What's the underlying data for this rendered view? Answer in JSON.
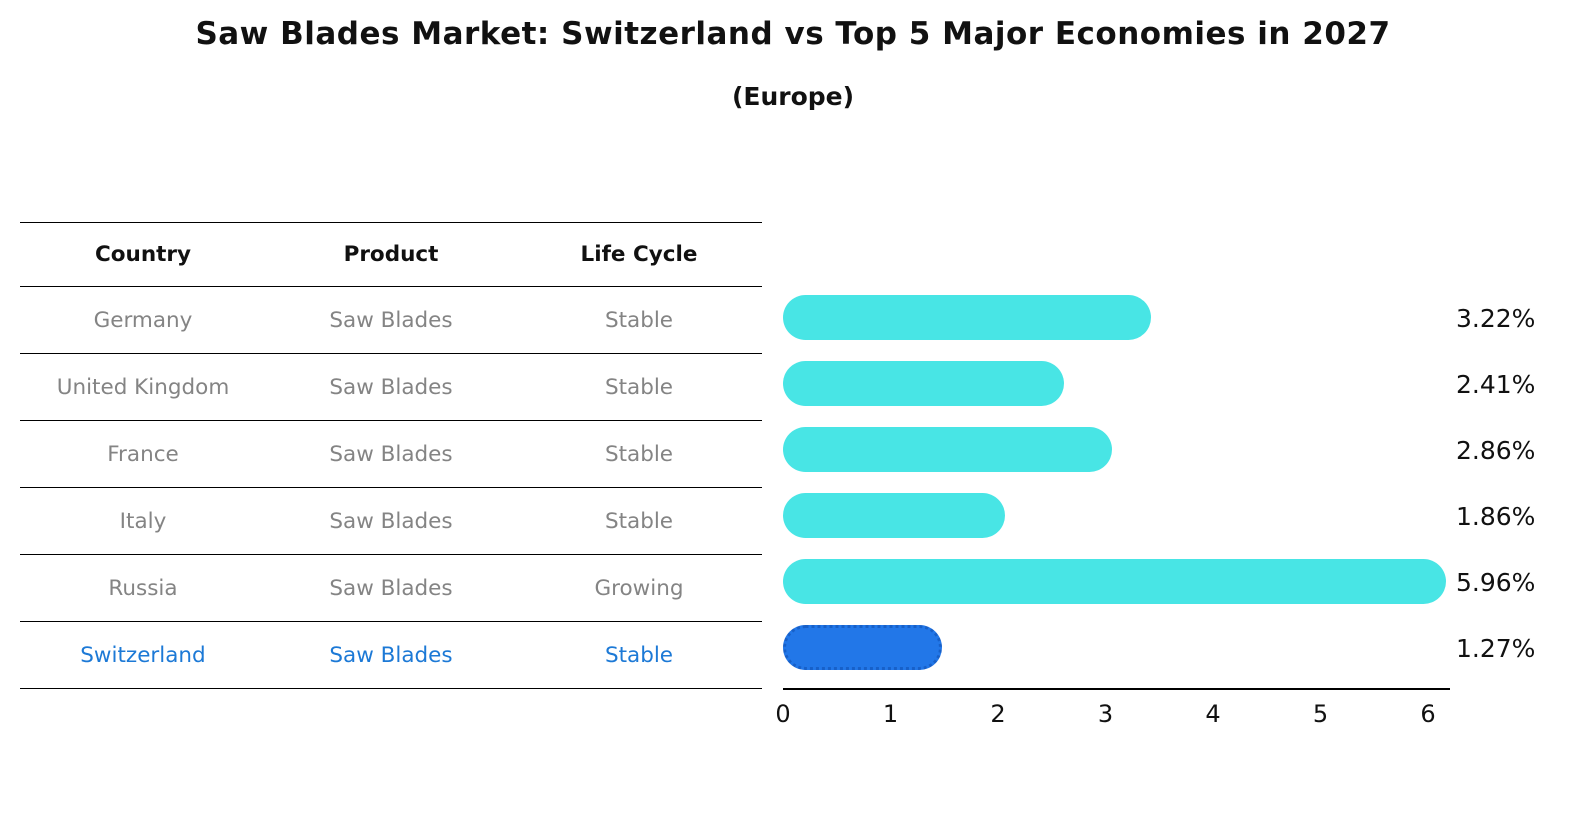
{
  "title": "Saw Blades Market: Switzerland vs Top 5 Major Economies in 2027",
  "subtitle": "(Europe)",
  "table": {
    "headers": [
      "Country",
      "Product",
      "Life Cycle"
    ],
    "row_text_color": "#848484",
    "highlight_text_color": "#1c79d6",
    "rows": [
      {
        "country": "Germany",
        "product": "Saw Blades",
        "life_cycle": "Stable",
        "highlight": false
      },
      {
        "country": "United Kingdom",
        "product": "Saw Blades",
        "life_cycle": "Stable",
        "highlight": false
      },
      {
        "country": "France",
        "product": "Saw Blades",
        "life_cycle": "Stable",
        "highlight": false
      },
      {
        "country": "Italy",
        "product": "Saw Blades",
        "life_cycle": "Stable",
        "highlight": false
      },
      {
        "country": "Russia",
        "product": "Saw Blades",
        "life_cycle": "Growing",
        "highlight": false
      },
      {
        "country": "Switzerland",
        "product": "Saw Blades",
        "life_cycle": "Stable",
        "highlight": true
      }
    ]
  },
  "chart_data": {
    "type": "bar",
    "orientation": "horizontal",
    "title": "Saw Blades Market: Switzerland vs Top 5 Major Economies in 2027",
    "subtitle": "(Europe)",
    "categories": [
      "Germany",
      "United Kingdom",
      "France",
      "Italy",
      "Russia",
      "Switzerland"
    ],
    "values": [
      3.22,
      2.41,
      2.86,
      1.86,
      5.96,
      1.27
    ],
    "value_labels": [
      "3.22%",
      "2.41%",
      "2.86%",
      "1.86%",
      "5.96%",
      "1.27%"
    ],
    "unit": "%",
    "x_ticks": [
      0,
      1,
      2,
      3,
      4,
      5,
      6
    ],
    "xlim": [
      0,
      6.2
    ],
    "grid": false,
    "legend": false,
    "bar_color": "#48e5e5",
    "highlight_color": "#2277e8",
    "highlight_border_color": "#1760c9",
    "highlight_index": 5
  }
}
